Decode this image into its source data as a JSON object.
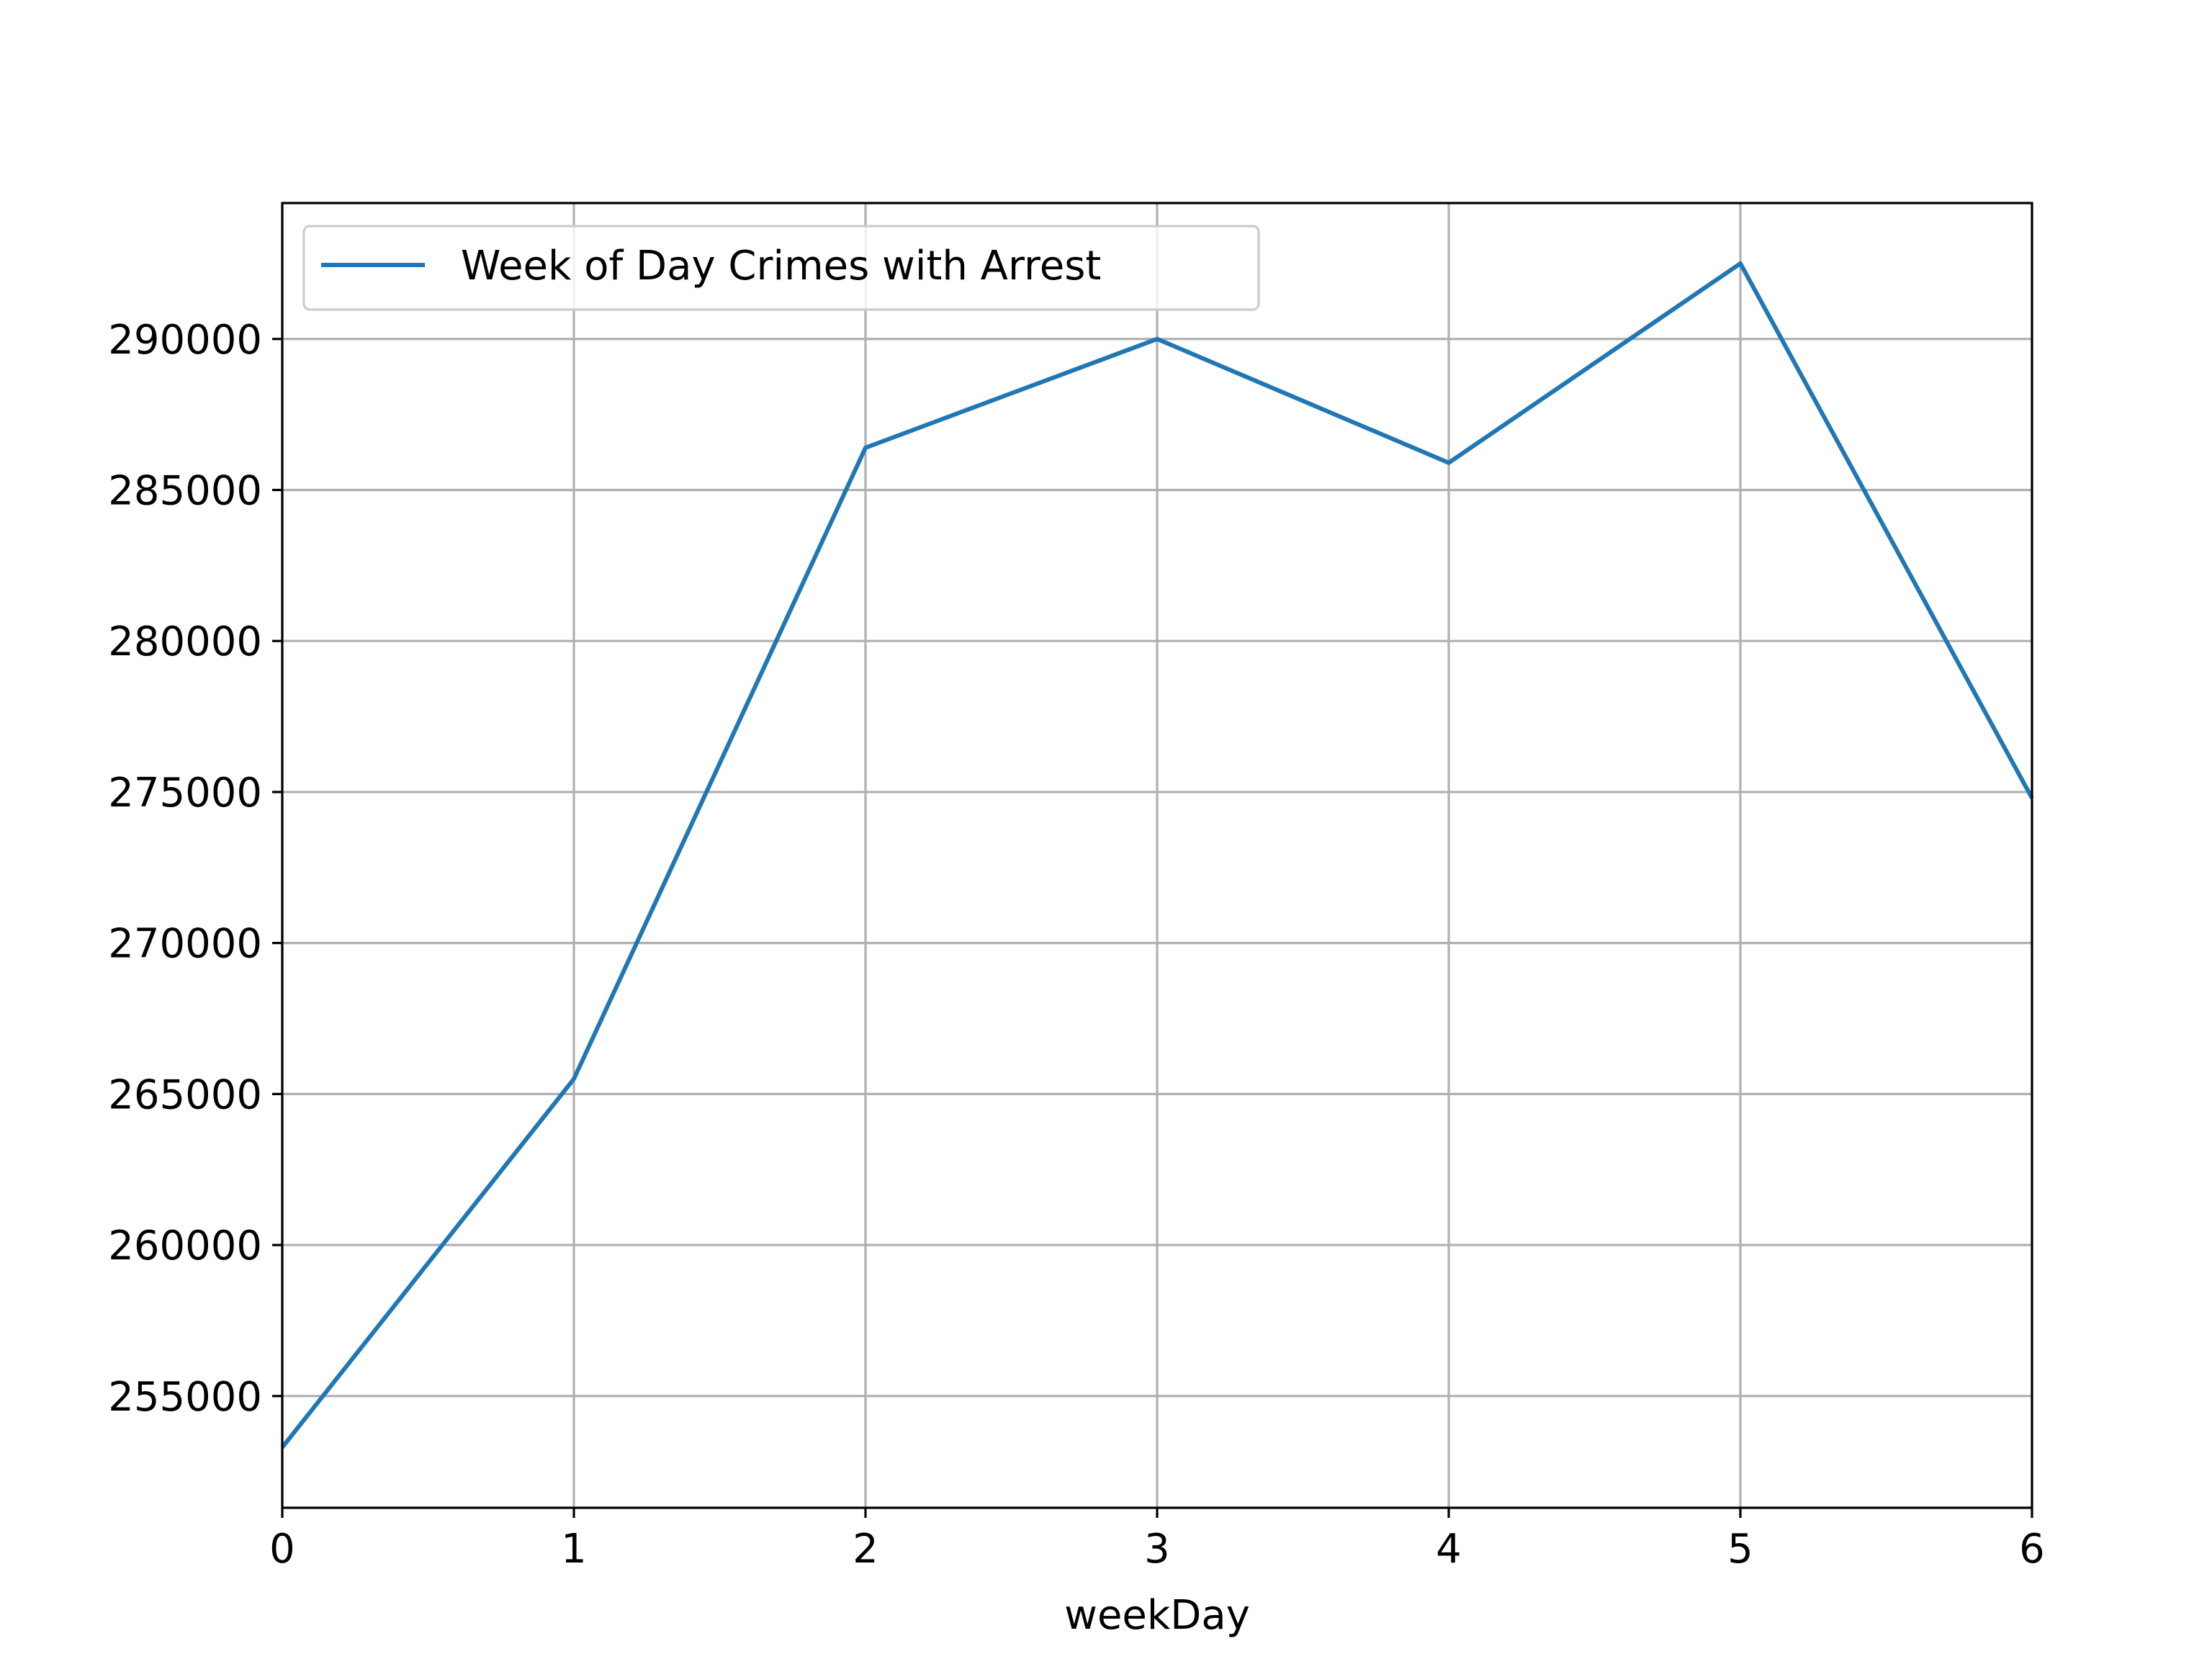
{
  "chart_data": {
    "type": "line",
    "title": "",
    "xlabel": "weekDay",
    "ylabel": "",
    "x": [
      0,
      1,
      2,
      3,
      4,
      5,
      6
    ],
    "series": [
      {
        "name": "Week of Day Crimes with Arrest",
        "values": [
          253300,
          265500,
          286400,
          290000,
          285900,
          292500,
          274800
        ],
        "color": "#1f77b4"
      }
    ],
    "xlim": [
      0,
      6
    ],
    "ylim": [
      251300,
      294500
    ],
    "xticks": [
      0,
      1,
      2,
      3,
      4,
      5,
      6
    ],
    "yticks": [
      255000,
      260000,
      265000,
      270000,
      275000,
      280000,
      285000,
      290000
    ],
    "x_tick_labels": [
      "0",
      "1",
      "2",
      "3",
      "4",
      "5",
      "6"
    ],
    "y_tick_labels": [
      "255000",
      "260000",
      "265000",
      "270000",
      "275000",
      "280000",
      "285000",
      "290000"
    ],
    "grid": true,
    "legend_position": "upper left",
    "colors": {
      "grid": "#b0b0b0",
      "axes": "#000000",
      "background": "#ffffff"
    }
  }
}
